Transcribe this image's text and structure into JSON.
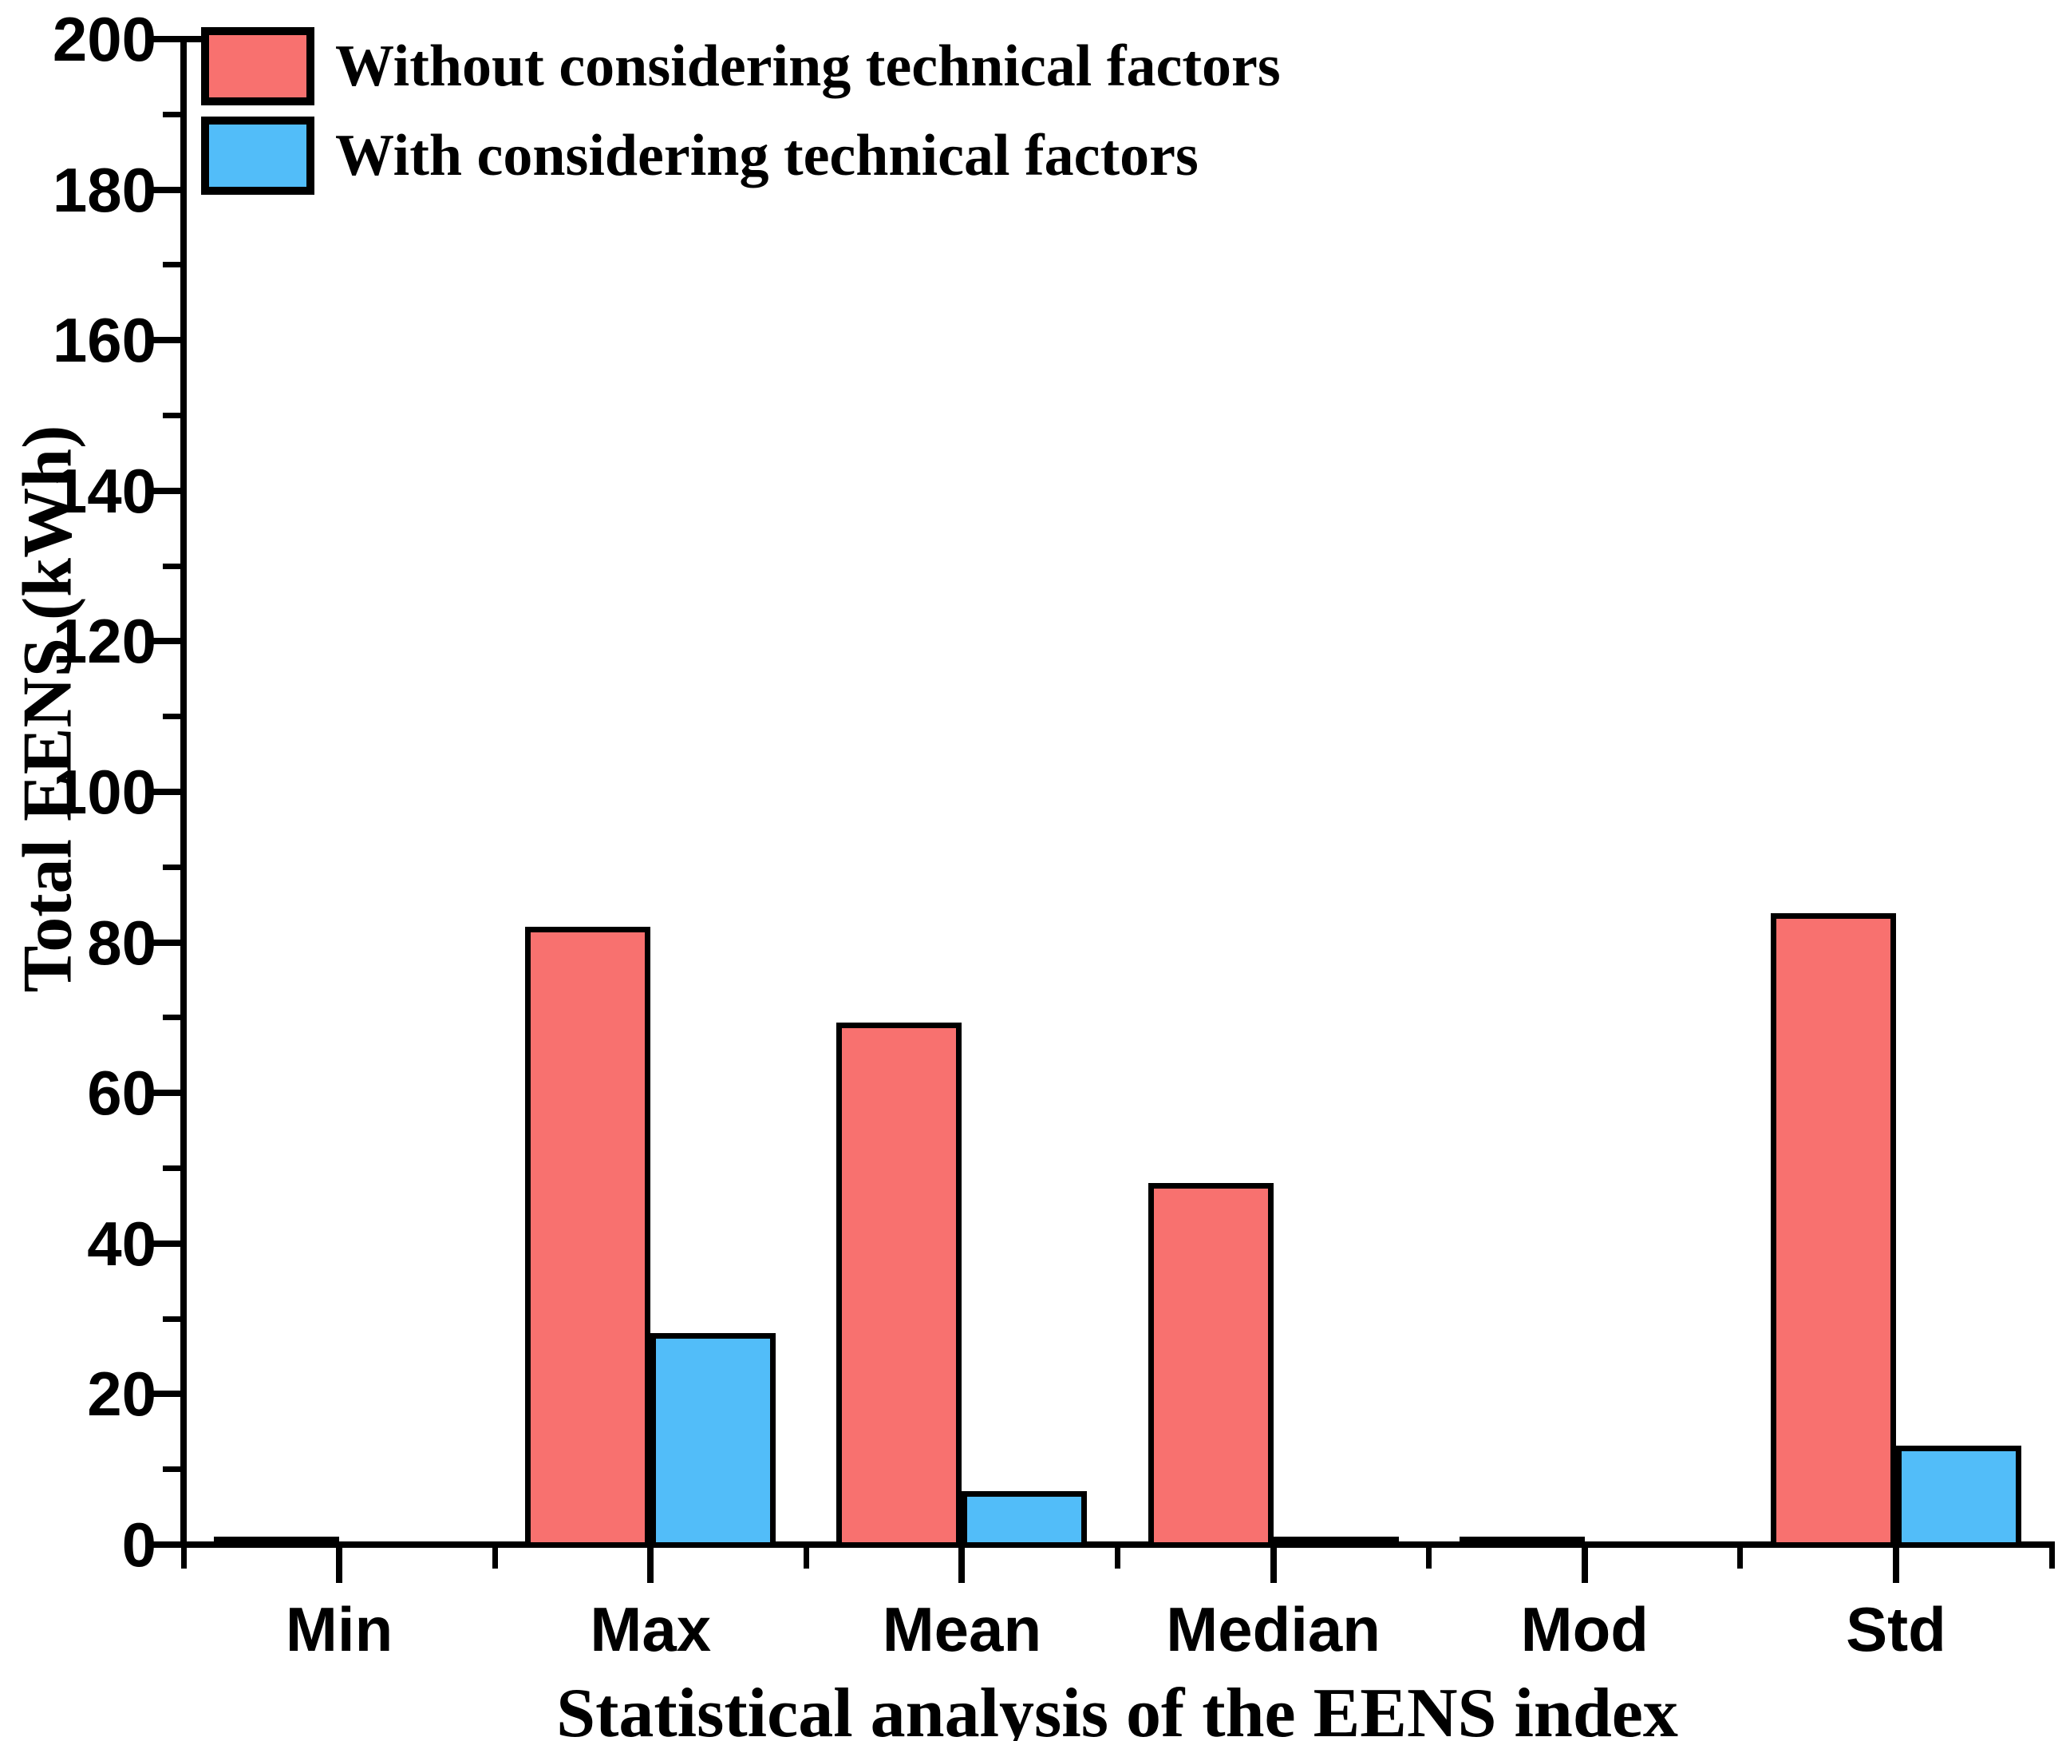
{
  "chart_data": {
    "type": "bar",
    "title": "",
    "xlabel": "Statistical analysis of the EENS index",
    "ylabel": "Total EENS (kWh)",
    "categories": [
      "Min",
      "Max",
      "Mean",
      "Median",
      "Mod",
      "Std"
    ],
    "series": [
      {
        "name": "Without considering technical factors",
        "color": "#F8716F",
        "values": [
          0.3,
          82.5,
          69.8,
          48.5,
          0.3,
          84.3
        ]
      },
      {
        "name": "With considering technical factors",
        "color": "#52BDF9",
        "values": [
          0,
          28.5,
          7.5,
          1.5,
          0,
          13.6
        ]
      }
    ],
    "ylim": [
      0,
      200
    ],
    "ytick_step": 20,
    "yminor_step": 10,
    "ytick_labels": [
      "0",
      "20",
      "40",
      "60",
      "80",
      "100",
      "120",
      "140",
      "160",
      "180",
      "200"
    ],
    "bar_border_color": "#000000",
    "axis_color": "#000000",
    "legend_position": "top-left",
    "grid": false
  }
}
